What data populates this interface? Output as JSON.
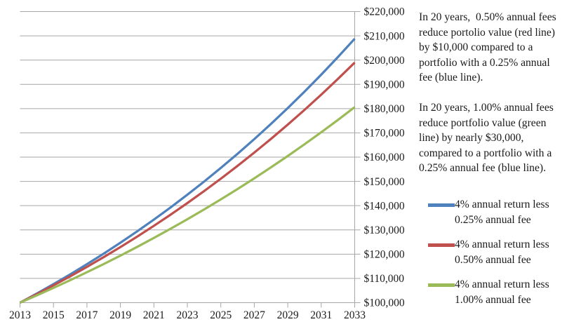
{
  "chart_data": {
    "type": "line",
    "x": [
      2013,
      2014,
      2015,
      2016,
      2017,
      2018,
      2019,
      2020,
      2021,
      2022,
      2023,
      2024,
      2025,
      2026,
      2027,
      2028,
      2029,
      2030,
      2031,
      2032,
      2033
    ],
    "series": [
      {
        "name": "4% annual return less 0.25% annual fee",
        "color": "#4F81BD",
        "values": [
          100000,
          103750,
          107641,
          111677,
          115865,
          120210,
          124718,
          129395,
          134247,
          139281,
          144504,
          149923,
          155545,
          161378,
          167430,
          173709,
          180223,
          186981,
          193993,
          201268,
          208815
        ]
      },
      {
        "name": "4% annual return less 0.50% annual fee",
        "color": "#C0504D",
        "values": [
          100000,
          103500,
          107123,
          110872,
          114752,
          118769,
          122926,
          127228,
          131681,
          136290,
          141060,
          145997,
          151107,
          156396,
          161869,
          167535,
          173399,
          179468,
          185749,
          192250,
          198979
        ]
      },
      {
        "name": "4% annual return less 1.00% annual fee",
        "color": "#9BBB59",
        "values": [
          100000,
          103000,
          106090,
          109273,
          112551,
          115927,
          119405,
          122987,
          126677,
          130477,
          134392,
          138423,
          142576,
          146853,
          151259,
          155797,
          160471,
          165285,
          170243,
          175351,
          180611
        ]
      }
    ],
    "xlim": [
      2013,
      2033
    ],
    "ylim": [
      100000,
      220000
    ],
    "y_tick_step": 10000,
    "x_tick_step": 2,
    "y_tick_labels": [
      "$100,000",
      "$110,000",
      "$120,000",
      "$130,000",
      "$140,000",
      "$150,000",
      "$160,000",
      "$170,000",
      "$180,000",
      "$190,000",
      "$200,000",
      "$210,000",
      "$220,000"
    ],
    "x_tick_labels": [
      "2013",
      "2015",
      "2017",
      "2019",
      "2021",
      "2023",
      "2025",
      "2027",
      "2029",
      "2031",
      "2033"
    ],
    "grid": "horizontal",
    "grid_color": "#A6A6A6",
    "axis_color": "#A6A6A6",
    "title": "",
    "xlabel": "",
    "ylabel": "",
    "legend_position": "right"
  },
  "annotations": {
    "para_050": "In 20 years,  0.50% annual fees\nreduce portolio value (red line)\nby $10,000 compared to a\nportfolio with a 0.25% annual\nfee (blue line).",
    "para_100": "In 20 years, 1.00% annual fees\nreduce portfolio value (green\nline) by nearly $30,000,\ncompared to a portfolio with a\n0.25% annual fee (blue line)."
  },
  "legend": {
    "items": [
      {
        "label": "4% annual return less\n0.25% annual fee",
        "color": "#4F81BD"
      },
      {
        "label": "4% annual return less\n0.50% annual fee",
        "color": "#C0504D"
      },
      {
        "label": "4% annual return less\n1.00% annual fee",
        "color": "#9BBB59"
      }
    ]
  }
}
